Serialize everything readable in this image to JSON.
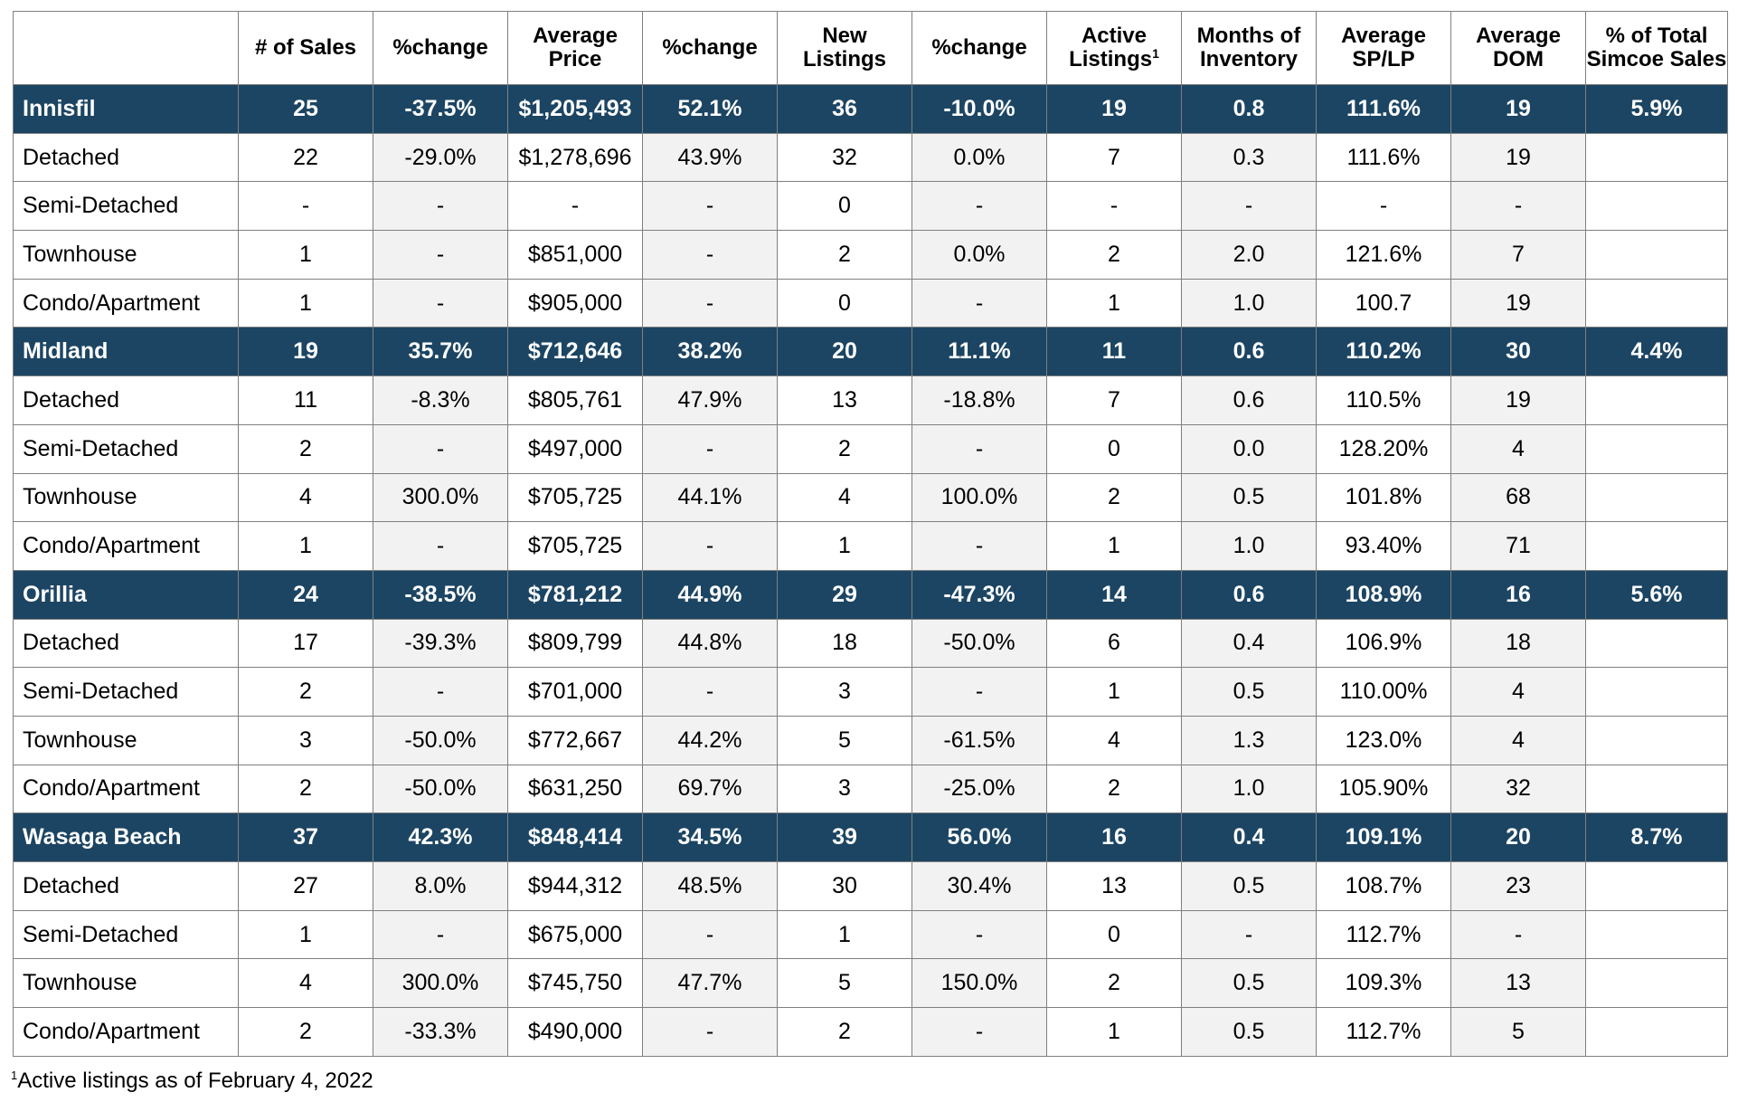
{
  "table": {
    "headers": [
      {
        "text": "",
        "sup": ""
      },
      {
        "text": "# of Sales",
        "sup": ""
      },
      {
        "text": "%change",
        "sup": ""
      },
      {
        "text": "Average Price",
        "sup": ""
      },
      {
        "text": "%change",
        "sup": ""
      },
      {
        "text": "New Listings",
        "sup": ""
      },
      {
        "text": "%change",
        "sup": ""
      },
      {
        "text": "Active Listings",
        "sup": "1"
      },
      {
        "text": "Months of Inventory",
        "sup": ""
      },
      {
        "text": "Average SP/LP",
        "sup": ""
      },
      {
        "text": "Average DOM",
        "sup": ""
      },
      {
        "text": "% of Total Simcoe Sales",
        "sup": ""
      }
    ],
    "rows": [
      {
        "type": "area",
        "cells": [
          "Innisfil",
          "25",
          "-37.5%",
          "$1,205,493",
          "52.1%",
          "36",
          "-10.0%",
          "19",
          "0.8",
          "111.6%",
          "19",
          "5.9%"
        ]
      },
      {
        "type": "sub",
        "cells": [
          "Detached",
          "22",
          "-29.0%",
          "$1,278,696",
          "43.9%",
          "32",
          "0.0%",
          "7",
          "0.3",
          "111.6%",
          "19",
          ""
        ]
      },
      {
        "type": "sub",
        "cells": [
          "Semi-Detached",
          "-",
          "-",
          "-",
          "-",
          "0",
          "-",
          "-",
          "-",
          "-",
          "-",
          ""
        ]
      },
      {
        "type": "sub",
        "cells": [
          "Townhouse",
          "1",
          "-",
          "$851,000",
          "-",
          "2",
          "0.0%",
          "2",
          "2.0",
          "121.6%",
          "7",
          ""
        ]
      },
      {
        "type": "sub",
        "cells": [
          "Condo/Apartment",
          "1",
          "-",
          "$905,000",
          "-",
          "0",
          "-",
          "1",
          "1.0",
          "100.7",
          "19",
          ""
        ]
      },
      {
        "type": "area",
        "cells": [
          "Midland",
          "19",
          "35.7%",
          "$712,646",
          "38.2%",
          "20",
          "11.1%",
          "11",
          "0.6",
          "110.2%",
          "30",
          "4.4%"
        ]
      },
      {
        "type": "sub",
        "cells": [
          "Detached",
          "11",
          "-8.3%",
          "$805,761",
          "47.9%",
          "13",
          "-18.8%",
          "7",
          "0.6",
          "110.5%",
          "19",
          ""
        ]
      },
      {
        "type": "sub",
        "cells": [
          "Semi-Detached",
          "2",
          "-",
          "$497,000",
          "-",
          "2",
          "-",
          "0",
          "0.0",
          "128.20%",
          "4",
          ""
        ]
      },
      {
        "type": "sub",
        "cells": [
          "Townhouse",
          "4",
          "300.0%",
          "$705,725",
          "44.1%",
          "4",
          "100.0%",
          "2",
          "0.5",
          "101.8%",
          "68",
          ""
        ]
      },
      {
        "type": "sub",
        "cells": [
          "Condo/Apartment",
          "1",
          "-",
          "$705,725",
          "-",
          "1",
          "-",
          "1",
          "1.0",
          "93.40%",
          "71",
          ""
        ]
      },
      {
        "type": "area",
        "cells": [
          "Orillia",
          "24",
          "-38.5%",
          "$781,212",
          "44.9%",
          "29",
          "-47.3%",
          "14",
          "0.6",
          "108.9%",
          "16",
          "5.6%"
        ]
      },
      {
        "type": "sub",
        "cells": [
          "Detached",
          "17",
          "-39.3%",
          "$809,799",
          "44.8%",
          "18",
          "-50.0%",
          "6",
          "0.4",
          "106.9%",
          "18",
          ""
        ]
      },
      {
        "type": "sub",
        "cells": [
          "Semi-Detached",
          "2",
          "-",
          "$701,000",
          "-",
          "3",
          "-",
          "1",
          "0.5",
          "110.00%",
          "4",
          ""
        ]
      },
      {
        "type": "sub",
        "cells": [
          "Townhouse",
          "3",
          "-50.0%",
          "$772,667",
          "44.2%",
          "5",
          "-61.5%",
          "4",
          "1.3",
          "123.0%",
          "4",
          ""
        ]
      },
      {
        "type": "sub",
        "cells": [
          "Condo/Apartment",
          "2",
          "-50.0%",
          "$631,250",
          "69.7%",
          "3",
          "-25.0%",
          "2",
          "1.0",
          "105.90%",
          "32",
          ""
        ]
      },
      {
        "type": "area",
        "cells": [
          "Wasaga Beach",
          "37",
          "42.3%",
          "$848,414",
          "34.5%",
          "39",
          "56.0%",
          "16",
          "0.4",
          "109.1%",
          "20",
          "8.7%"
        ]
      },
      {
        "type": "sub",
        "cells": [
          "Detached",
          "27",
          "8.0%",
          "$944,312",
          "48.5%",
          "30",
          "30.4%",
          "13",
          "0.5",
          "108.7%",
          "23",
          ""
        ]
      },
      {
        "type": "sub",
        "cells": [
          "Semi-Detached",
          "1",
          "-",
          "$675,000",
          "-",
          "1",
          "-",
          "0",
          "-",
          "112.7%",
          "-",
          ""
        ]
      },
      {
        "type": "sub",
        "cells": [
          "Townhouse",
          "4",
          "300.0%",
          "$745,750",
          "47.7%",
          "5",
          "150.0%",
          "2",
          "0.5",
          "109.3%",
          "13",
          ""
        ]
      },
      {
        "type": "sub",
        "cells": [
          "Condo/Apartment",
          "2",
          "-33.3%",
          "$490,000",
          "-",
          "2",
          "-",
          "1",
          "0.5",
          "112.7%",
          "5",
          ""
        ]
      }
    ]
  },
  "footnote": {
    "sup": "1",
    "text": "Active listings as of February 4, 2022"
  },
  "colors": {
    "area_row_bg": "#1c4563",
    "area_row_text": "#ffffff",
    "shaded_column_bg": "#f2f2f2",
    "border": "#7f7f7f"
  }
}
